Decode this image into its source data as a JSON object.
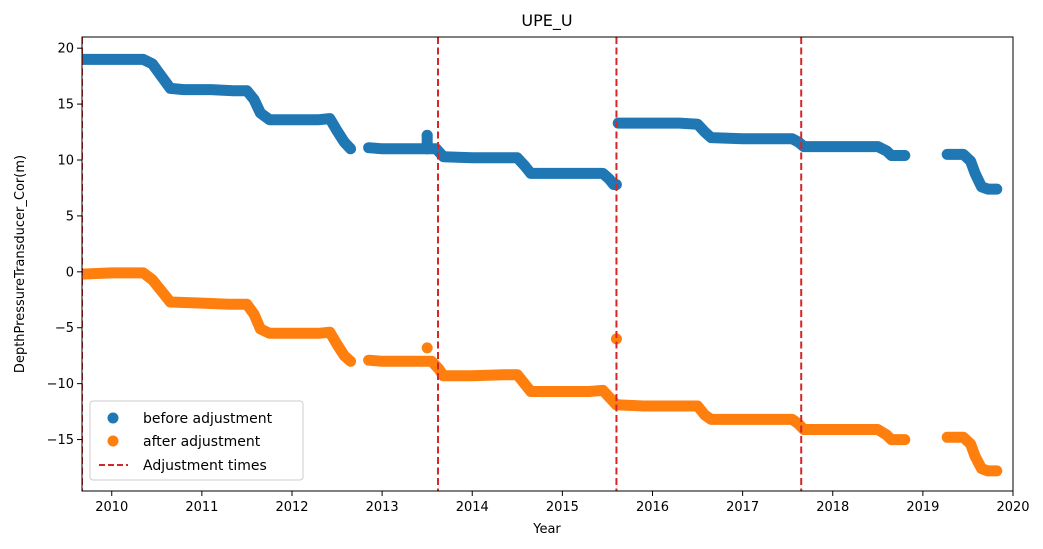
{
  "chart_data": {
    "type": "scatter",
    "title": "UPE_U",
    "xlabel": "Year",
    "ylabel": "DepthPressureTransducer_Cor(m)",
    "xlim": [
      2009.67,
      2020.0
    ],
    "ylim": [
      -19.6,
      21.0
    ],
    "xticks": [
      2010,
      2011,
      2012,
      2013,
      2014,
      2015,
      2016,
      2017,
      2018,
      2019,
      2020
    ],
    "yticks": [
      -15,
      -10,
      -5,
      0,
      5,
      10,
      15,
      20
    ],
    "grid": false,
    "legend_position": "lower-left",
    "series": [
      {
        "name": "before adjustment",
        "color": "#1f77b4",
        "segments": [
          [
            [
              2009.67,
              19.0
            ],
            [
              2010.35,
              19.0
            ],
            [
              2010.45,
              18.6
            ],
            [
              2010.55,
              17.5
            ],
            [
              2010.65,
              16.4
            ],
            [
              2010.8,
              16.3
            ],
            [
              2011.1,
              16.3
            ],
            [
              2011.35,
              16.2
            ],
            [
              2011.5,
              16.2
            ],
            [
              2011.58,
              15.4
            ],
            [
              2011.65,
              14.2
            ],
            [
              2011.75,
              13.6
            ],
            [
              2012.0,
              13.6
            ],
            [
              2012.3,
              13.6
            ],
            [
              2012.42,
              13.7
            ],
            [
              2012.5,
              12.6
            ],
            [
              2012.58,
              11.6
            ],
            [
              2012.65,
              11.0
            ]
          ],
          [
            [
              2012.85,
              11.1
            ],
            [
              2013.0,
              11.0
            ],
            [
              2013.3,
              11.0
            ],
            [
              2013.6,
              11.0
            ],
            [
              2013.68,
              10.3
            ],
            [
              2014.0,
              10.2
            ],
            [
              2014.35,
              10.2
            ],
            [
              2014.5,
              10.2
            ],
            [
              2014.58,
              9.5
            ],
            [
              2014.65,
              8.8
            ],
            [
              2015.0,
              8.8
            ],
            [
              2015.3,
              8.8
            ],
            [
              2015.45,
              8.8
            ],
            [
              2015.52,
              8.3
            ],
            [
              2015.57,
              7.8
            ],
            [
              2015.6,
              7.8
            ]
          ],
          [
            [
              2015.62,
              13.3
            ],
            [
              2015.9,
              13.3
            ],
            [
              2016.3,
              13.3
            ],
            [
              2016.5,
              13.2
            ],
            [
              2016.58,
              12.5
            ],
            [
              2016.65,
              12.0
            ],
            [
              2017.0,
              11.9
            ],
            [
              2017.35,
              11.9
            ],
            [
              2017.55,
              11.9
            ],
            [
              2017.62,
              11.6
            ],
            [
              2017.68,
              11.2
            ],
            [
              2018.0,
              11.2
            ],
            [
              2018.3,
              11.2
            ],
            [
              2018.5,
              11.2
            ],
            [
              2018.6,
              10.8
            ],
            [
              2018.65,
              10.4
            ],
            [
              2018.8,
              10.4
            ]
          ],
          [
            [
              2019.27,
              10.5
            ],
            [
              2019.45,
              10.5
            ],
            [
              2019.53,
              9.9
            ],
            [
              2019.58,
              8.8
            ],
            [
              2019.65,
              7.6
            ],
            [
              2019.72,
              7.4
            ],
            [
              2019.82,
              7.4
            ]
          ]
        ]
      },
      {
        "name": "after adjustment",
        "color": "#ff7f0e",
        "segments": [
          [
            [
              2009.67,
              -0.2
            ],
            [
              2010.0,
              -0.1
            ],
            [
              2010.35,
              -0.1
            ],
            [
              2010.45,
              -0.7
            ],
            [
              2010.55,
              -1.7
            ],
            [
              2010.65,
              -2.7
            ],
            [
              2011.0,
              -2.8
            ],
            [
              2011.3,
              -2.9
            ],
            [
              2011.5,
              -2.9
            ],
            [
              2011.58,
              -3.8
            ],
            [
              2011.65,
              -5.1
            ],
            [
              2011.75,
              -5.5
            ],
            [
              2012.0,
              -5.5
            ],
            [
              2012.3,
              -5.5
            ],
            [
              2012.42,
              -5.4
            ],
            [
              2012.5,
              -6.5
            ],
            [
              2012.58,
              -7.5
            ],
            [
              2012.65,
              -8.0
            ]
          ],
          [
            [
              2012.85,
              -7.9
            ],
            [
              2013.0,
              -8.0
            ],
            [
              2013.3,
              -8.0
            ],
            [
              2013.55,
              -8.0
            ],
            [
              2013.63,
              -8.7
            ],
            [
              2013.68,
              -9.3
            ],
            [
              2014.0,
              -9.3
            ],
            [
              2014.35,
              -9.2
            ],
            [
              2014.5,
              -9.2
            ],
            [
              2014.58,
              -10.0
            ],
            [
              2014.65,
              -10.7
            ],
            [
              2015.0,
              -10.7
            ],
            [
              2015.3,
              -10.7
            ],
            [
              2015.45,
              -10.6
            ],
            [
              2015.52,
              -11.2
            ],
            [
              2015.6,
              -11.9
            ]
          ],
          [
            [
              2015.62,
              -11.9
            ],
            [
              2015.9,
              -12.0
            ],
            [
              2016.3,
              -12.0
            ],
            [
              2016.5,
              -12.0
            ],
            [
              2016.58,
              -12.8
            ],
            [
              2016.65,
              -13.2
            ],
            [
              2017.0,
              -13.2
            ],
            [
              2017.35,
              -13.2
            ],
            [
              2017.55,
              -13.2
            ],
            [
              2017.62,
              -13.6
            ],
            [
              2017.68,
              -14.1
            ],
            [
              2018.0,
              -14.1
            ],
            [
              2018.3,
              -14.1
            ],
            [
              2018.5,
              -14.1
            ],
            [
              2018.6,
              -14.6
            ],
            [
              2018.65,
              -15.0
            ],
            [
              2018.8,
              -15.0
            ]
          ],
          [
            [
              2019.27,
              -14.8
            ],
            [
              2019.45,
              -14.8
            ],
            [
              2019.53,
              -15.4
            ],
            [
              2019.58,
              -16.5
            ],
            [
              2019.65,
              -17.6
            ],
            [
              2019.72,
              -17.8
            ],
            [
              2019.82,
              -17.8
            ]
          ]
        ],
        "outliers": [
          [
            2015.6,
            -6.0
          ],
          [
            2013.5,
            -6.8
          ]
        ]
      }
    ],
    "outliers_before": [
      [
        2013.5,
        12.2
      ]
    ],
    "adjustment_times": {
      "name": "Adjustment times",
      "color": "#d62728",
      "x": [
        2009.67,
        2013.62,
        2015.6,
        2017.65
      ]
    }
  }
}
